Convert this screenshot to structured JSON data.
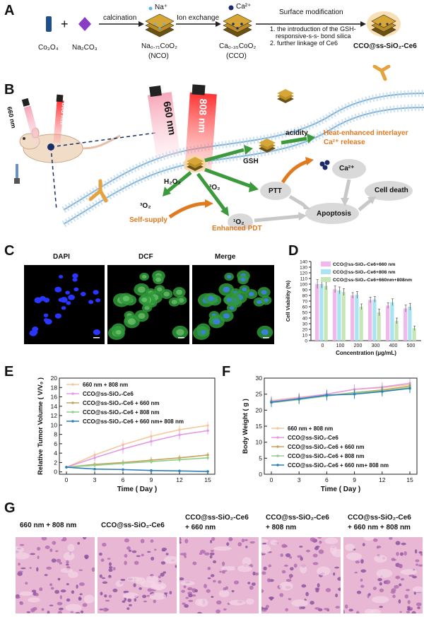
{
  "panels": {
    "A": "A",
    "B": "B",
    "C": "C",
    "D": "D",
    "E": "E",
    "F": "F",
    "G": "G"
  },
  "scheme_a": {
    "co3o4": "Co₃O₄",
    "plus": "+",
    "na2co3": "Na₂CO₃",
    "calcination": "calcination",
    "na_ion": "Na⁺",
    "nco_formula": "Na₀.₇₁CoO₂",
    "nco_abbr": "(NCO)",
    "ion_exchange": "Ion exchange",
    "ca_ion": "Ca²⁺",
    "cco_formula": "Ca₀.₃₅CoO₂",
    "cco_abbr": "(CCO)",
    "surface_mod": "Surface modification",
    "step1": "1. the introduction of the GSH-",
    "step1b": "responsive-s-s- bond silica",
    "step2": "2. further linkage of Ce6",
    "product": "CCO@ss-SiO₂-Ce6"
  },
  "scheme_b": {
    "laser660": "660 nm",
    "laser808": "808 nm",
    "laser660_big": "660 nm",
    "laser808_big": "808 nm",
    "gsh": "GSH",
    "acidity": "acidity",
    "heat_release_1": "Heat-enhanced interlayer",
    "heat_release_2": "Ca²⁺ release",
    "ca": "Ca²⁺",
    "h2o2": "H₂O₂",
    "o2_3a": "³O₂",
    "o2_3b": "³O₂",
    "o2_1": "¹O₂",
    "ptt": "PTT",
    "self_supply": "Self-supply",
    "enhanced_pdt": "Enhanced PDT",
    "apoptosis": "Apoptosis",
    "cell_death": "Cell death"
  },
  "panel_c": {
    "dapi": "DAPI",
    "dcf": "DCF",
    "merge": "Merge"
  },
  "chart_data": [
    {
      "id": "D",
      "type": "bar",
      "ylabel": "Cell Viability (%)",
      "xlabel": "Concentration (μg/mL)",
      "ylim": [
        0,
        140
      ],
      "yticks": [
        0,
        10,
        20,
        30,
        40,
        50,
        60,
        70,
        80,
        90,
        100,
        110,
        120,
        130,
        140
      ],
      "categories": [
        "0",
        "100",
        "200",
        "300",
        "400",
        "500"
      ],
      "legend_position": "top-right",
      "series": [
        {
          "name": "CCO@ss-SiO₂-Ce6+660 nm",
          "color": "#f2b8ee",
          "values": [
            100,
            91,
            80,
            72,
            62,
            57
          ],
          "errors": [
            8,
            6,
            5,
            5,
            5,
            6
          ]
        },
        {
          "name": "CCO@ss-SiO₂-Ce6+808 nm",
          "color": "#a8e4f2",
          "values": [
            100,
            89,
            81,
            73,
            68,
            60
          ],
          "errors": [
            7,
            6,
            6,
            5,
            6,
            6
          ]
        },
        {
          "name": "CCO@ss-SiO₂-Ce6+660nm+808nm",
          "color": "#c7e6b8",
          "values": [
            97,
            86,
            60,
            50,
            35,
            22
          ],
          "errors": [
            7,
            6,
            5,
            6,
            5,
            4
          ]
        }
      ]
    },
    {
      "id": "E",
      "type": "line",
      "ylabel": "Relative Tumor Volume ( V/V₀ )",
      "xlabel": "Time ( Day )",
      "ylim": [
        -0.5,
        20
      ],
      "yticks": [
        0,
        2,
        4,
        6,
        8,
        10,
        12,
        14,
        16,
        18,
        20
      ],
      "xticks": [
        0,
        3,
        6,
        9,
        12,
        15
      ],
      "legend_position": "top-left",
      "series": [
        {
          "name": "660 nm + 808 nm",
          "color": "#f5c89a",
          "x": [
            0,
            3,
            6,
            9,
            12,
            15
          ],
          "y": [
            1,
            3.6,
            5.8,
            7.6,
            9.0,
            9.9
          ],
          "err": [
            0.3,
            0.8,
            1.0,
            1.2,
            1.0,
            0.8
          ]
        },
        {
          "name": "CCO@ss-SiO₂-Ce6",
          "color": "#e59ae8",
          "x": [
            0,
            3,
            6,
            9,
            12,
            15
          ],
          "y": [
            1,
            3.0,
            4.9,
            6.5,
            7.9,
            8.8
          ],
          "err": [
            0.3,
            0.8,
            1.0,
            1.0,
            1.0,
            0.8
          ]
        },
        {
          "name": "CCO@ss-SiO₂-Ce6  + 660 nm",
          "color": "#c8a25a",
          "x": [
            0,
            3,
            6,
            9,
            12,
            15
          ],
          "y": [
            1,
            1.6,
            2.0,
            2.5,
            3.0,
            3.6
          ],
          "err": [
            0.2,
            0.5,
            0.6,
            0.7,
            0.6,
            0.6
          ]
        },
        {
          "name": "CCO@ss-SiO₂-Ce6  + 808 nm",
          "color": "#8fcf8a",
          "x": [
            0,
            3,
            6,
            9,
            12,
            15
          ],
          "y": [
            1,
            1.4,
            1.8,
            2.2,
            2.6,
            3.0
          ],
          "err": [
            0.2,
            0.4,
            0.5,
            0.5,
            0.5,
            0.5
          ]
        },
        {
          "name": "CCO@ss-SiO₂-Ce6  + 660 nm+ 808 nm",
          "color": "#2b7fb8",
          "x": [
            0,
            3,
            6,
            9,
            12,
            15
          ],
          "y": [
            1,
            0.6,
            0.5,
            0.3,
            0.2,
            0.1
          ],
          "err": [
            0.2,
            0.1,
            0.1,
            0.1,
            0.1,
            0.1
          ]
        }
      ]
    },
    {
      "id": "F",
      "type": "line",
      "ylabel": "Body Weight ( g )",
      "xlabel": "Time ( Day )",
      "ylim": [
        0,
        30
      ],
      "yticks": [
        0,
        5,
        10,
        15,
        20,
        25,
        30
      ],
      "xticks": [
        0,
        3,
        6,
        9,
        12,
        15
      ],
      "legend_position": "bottom-left",
      "series": [
        {
          "name": "660 nm + 808 nm",
          "color": "#f5c89a",
          "x": [
            0,
            3,
            6,
            9,
            12,
            15
          ],
          "y": [
            23,
            24,
            25,
            26.5,
            27,
            28
          ],
          "err": [
            1.5,
            1.5,
            1.5,
            1.5,
            1.5,
            1.5
          ]
        },
        {
          "name": "CCO@ss-SiO₂-Ce6",
          "color": "#e59ae8",
          "x": [
            0,
            3,
            6,
            9,
            12,
            15
          ],
          "y": [
            22.8,
            23.8,
            25,
            26.5,
            27.2,
            28.4
          ],
          "err": [
            1.5,
            1.5,
            1.5,
            1.5,
            1.5,
            1.5
          ]
        },
        {
          "name": "CCO@ss-SiO₂-Ce6 + 660 nm",
          "color": "#c8a25a",
          "x": [
            0,
            3,
            6,
            9,
            12,
            15
          ],
          "y": [
            22.5,
            23.5,
            24.5,
            25.5,
            26.3,
            27.5
          ],
          "err": [
            1.5,
            1.5,
            1.5,
            1.5,
            1.5,
            1.5
          ]
        },
        {
          "name": "CCO@ss-SiO₂-Ce6 + 808 nm",
          "color": "#8fcf8a",
          "x": [
            0,
            3,
            6,
            9,
            12,
            15
          ],
          "y": [
            22.3,
            23.3,
            24.4,
            25.4,
            26,
            27
          ],
          "err": [
            1.5,
            1.5,
            1.5,
            1.5,
            1.5,
            1.5
          ]
        },
        {
          "name": "CCO@ss-SiO₂-Ce6 + 660 nm+ 808 nm",
          "color": "#2b7fb8",
          "x": [
            0,
            3,
            6,
            9,
            12,
            15
          ],
          "y": [
            22.5,
            23.5,
            24.7,
            25,
            25.8,
            26.8
          ],
          "err": [
            1.5,
            1.5,
            1.5,
            1.5,
            1.5,
            1.5
          ]
        }
      ]
    }
  ],
  "panel_g": {
    "labels": [
      {
        "l1": "660 nm + 808 nm",
        "l2": ""
      },
      {
        "l1": "CCO@ss-SiO₂-Ce6",
        "l2": ""
      },
      {
        "l1": "CCO@ss-SiO₂-Ce6",
        "l2": "+ 660 nm"
      },
      {
        "l1": "CCO@ss-SiO₂-Ce6",
        "l2": "+ 808 nm"
      },
      {
        "l1": "CCO@ss-SiO₂-Ce6",
        "l2": "+ 660 nm + 808 nm"
      }
    ]
  }
}
